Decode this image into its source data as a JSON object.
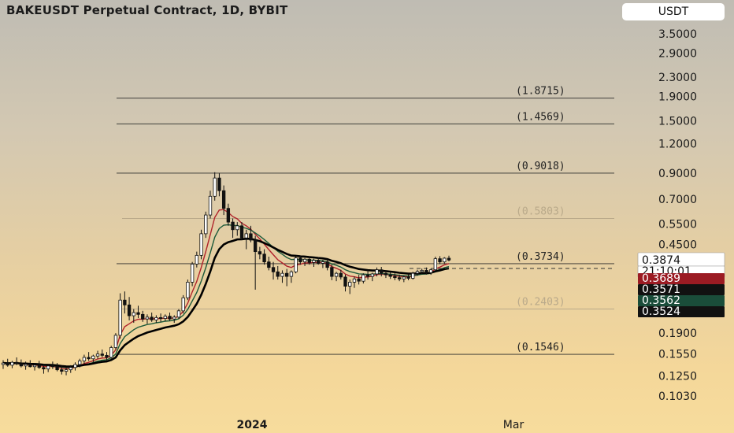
{
  "title": "BAKEUSDT Perpetual Contract, 1D, BYBIT",
  "currency_button": "USDT",
  "chart_data": {
    "type": "candlestick",
    "symbol": "BAKEUSDT Perpetual Contract",
    "interval": "1D",
    "exchange": "BYBIT",
    "y_scale": "log",
    "y_ticks": [
      "3.5000",
      "2.9000",
      "2.3000",
      "1.9000",
      "1.5000",
      "1.2000",
      "0.9000",
      "0.7000",
      "0.5500",
      "0.4500",
      "0.1900",
      "0.1550",
      "0.1250",
      "0.1030"
    ],
    "x_ticks": [
      "2024",
      "Mar"
    ],
    "fib_levels": [
      {
        "label": "(1.8715)",
        "value": 1.8715,
        "faded": false
      },
      {
        "label": "(1.4569)",
        "value": 1.4569,
        "faded": false
      },
      {
        "label": "(0.9018)",
        "value": 0.9018,
        "faded": false
      },
      {
        "label": "(0.5803)",
        "value": 0.5803,
        "faded": true
      },
      {
        "label": "(0.3734)",
        "value": 0.3734,
        "faded": false
      },
      {
        "label": "(0.2403)",
        "value": 0.2403,
        "faded": true
      },
      {
        "label": "(0.1546)",
        "value": 0.1546,
        "faded": false
      }
    ],
    "price_labels": [
      {
        "text": "0.3874",
        "style": "current"
      },
      {
        "text": "21:10:01",
        "style": "timer"
      },
      {
        "text": "0.3689",
        "style": "red",
        "color": "#9b1b23"
      },
      {
        "text": "0.3571",
        "style": "black",
        "color": "#111111"
      },
      {
        "text": "0.3562",
        "style": "green",
        "color": "#1a4d3a"
      },
      {
        "text": "0.3524",
        "style": "black",
        "color": "#111111"
      }
    ],
    "candles": [
      [
        0.14,
        0.146,
        0.134,
        0.142
      ],
      [
        0.142,
        0.148,
        0.137,
        0.139
      ],
      [
        0.139,
        0.145,
        0.135,
        0.143
      ],
      [
        0.143,
        0.15,
        0.139,
        0.141
      ],
      [
        0.141,
        0.147,
        0.136,
        0.138
      ],
      [
        0.138,
        0.144,
        0.133,
        0.14
      ],
      [
        0.14,
        0.146,
        0.136,
        0.137
      ],
      [
        0.137,
        0.142,
        0.132,
        0.139
      ],
      [
        0.139,
        0.145,
        0.134,
        0.136
      ],
      [
        0.136,
        0.141,
        0.128,
        0.134
      ],
      [
        0.134,
        0.14,
        0.13,
        0.138
      ],
      [
        0.138,
        0.144,
        0.134,
        0.137
      ],
      [
        0.137,
        0.142,
        0.131,
        0.133
      ],
      [
        0.133,
        0.138,
        0.127,
        0.131
      ],
      [
        0.131,
        0.136,
        0.126,
        0.133
      ],
      [
        0.133,
        0.139,
        0.129,
        0.136
      ],
      [
        0.136,
        0.143,
        0.132,
        0.14
      ],
      [
        0.14,
        0.148,
        0.136,
        0.145
      ],
      [
        0.145,
        0.154,
        0.141,
        0.15
      ],
      [
        0.15,
        0.158,
        0.145,
        0.148
      ],
      [
        0.148,
        0.154,
        0.143,
        0.152
      ],
      [
        0.152,
        0.16,
        0.148,
        0.155
      ],
      [
        0.155,
        0.162,
        0.15,
        0.153
      ],
      [
        0.153,
        0.158,
        0.146,
        0.15
      ],
      [
        0.15,
        0.168,
        0.148,
        0.165
      ],
      [
        0.165,
        0.19,
        0.162,
        0.186
      ],
      [
        0.186,
        0.28,
        0.18,
        0.262
      ],
      [
        0.262,
        0.285,
        0.23,
        0.25
      ],
      [
        0.25,
        0.27,
        0.215,
        0.225
      ],
      [
        0.225,
        0.24,
        0.21,
        0.232
      ],
      [
        0.232,
        0.248,
        0.22,
        0.228
      ],
      [
        0.228,
        0.236,
        0.212,
        0.218
      ],
      [
        0.218,
        0.228,
        0.208,
        0.222
      ],
      [
        0.222,
        0.232,
        0.212,
        0.216
      ],
      [
        0.216,
        0.226,
        0.21,
        0.221
      ],
      [
        0.221,
        0.23,
        0.212,
        0.219
      ],
      [
        0.219,
        0.228,
        0.213,
        0.224
      ],
      [
        0.224,
        0.232,
        0.214,
        0.218
      ],
      [
        0.218,
        0.226,
        0.21,
        0.222
      ],
      [
        0.222,
        0.24,
        0.218,
        0.236
      ],
      [
        0.236,
        0.275,
        0.23,
        0.268
      ],
      [
        0.268,
        0.32,
        0.262,
        0.312
      ],
      [
        0.312,
        0.38,
        0.3,
        0.372
      ],
      [
        0.372,
        0.42,
        0.36,
        0.405
      ],
      [
        0.405,
        0.52,
        0.39,
        0.5
      ],
      [
        0.5,
        0.62,
        0.48,
        0.6
      ],
      [
        0.6,
        0.76,
        0.58,
        0.72
      ],
      [
        0.72,
        0.91,
        0.69,
        0.86
      ],
      [
        0.86,
        0.9,
        0.72,
        0.76
      ],
      [
        0.76,
        0.8,
        0.6,
        0.64
      ],
      [
        0.64,
        0.67,
        0.54,
        0.56
      ],
      [
        0.56,
        0.58,
        0.48,
        0.52
      ],
      [
        0.52,
        0.56,
        0.49,
        0.54
      ],
      [
        0.54,
        0.56,
        0.47,
        0.48
      ],
      [
        0.48,
        0.52,
        0.43,
        0.5
      ],
      [
        0.5,
        0.54,
        0.46,
        0.47
      ],
      [
        0.47,
        0.49,
        0.29,
        0.42
      ],
      [
        0.42,
        0.44,
        0.39,
        0.41
      ],
      [
        0.41,
        0.43,
        0.37,
        0.38
      ],
      [
        0.38,
        0.4,
        0.35,
        0.36
      ],
      [
        0.36,
        0.38,
        0.32,
        0.345
      ],
      [
        0.345,
        0.365,
        0.32,
        0.33
      ],
      [
        0.33,
        0.35,
        0.31,
        0.34
      ],
      [
        0.34,
        0.355,
        0.3,
        0.33
      ],
      [
        0.33,
        0.35,
        0.31,
        0.345
      ],
      [
        0.345,
        0.4,
        0.34,
        0.395
      ],
      [
        0.395,
        0.405,
        0.37,
        0.38
      ],
      [
        0.38,
        0.395,
        0.365,
        0.39
      ],
      [
        0.39,
        0.4,
        0.37,
        0.378
      ],
      [
        0.378,
        0.392,
        0.362,
        0.386
      ],
      [
        0.386,
        0.398,
        0.37,
        0.375
      ],
      [
        0.375,
        0.388,
        0.358,
        0.38
      ],
      [
        0.38,
        0.39,
        0.35,
        0.36
      ],
      [
        0.36,
        0.372,
        0.318,
        0.33
      ],
      [
        0.33,
        0.345,
        0.315,
        0.34
      ],
      [
        0.34,
        0.352,
        0.32,
        0.328
      ],
      [
        0.328,
        0.336,
        0.285,
        0.3
      ],
      [
        0.3,
        0.32,
        0.278,
        0.312
      ],
      [
        0.312,
        0.33,
        0.295,
        0.322
      ],
      [
        0.322,
        0.335,
        0.305,
        0.315
      ],
      [
        0.315,
        0.34,
        0.308,
        0.335
      ],
      [
        0.335,
        0.35,
        0.32,
        0.33
      ],
      [
        0.33,
        0.342,
        0.315,
        0.338
      ],
      [
        0.338,
        0.36,
        0.33,
        0.352
      ],
      [
        0.352,
        0.362,
        0.33,
        0.34
      ],
      [
        0.34,
        0.35,
        0.325,
        0.335
      ],
      [
        0.335,
        0.345,
        0.322,
        0.33
      ],
      [
        0.33,
        0.34,
        0.318,
        0.326
      ],
      [
        0.326,
        0.336,
        0.315,
        0.322
      ],
      [
        0.322,
        0.332,
        0.312,
        0.328
      ],
      [
        0.328,
        0.338,
        0.318,
        0.324
      ],
      [
        0.324,
        0.345,
        0.32,
        0.34
      ],
      [
        0.34,
        0.352,
        0.332,
        0.346
      ],
      [
        0.346,
        0.356,
        0.338,
        0.35
      ],
      [
        0.35,
        0.36,
        0.336,
        0.342
      ],
      [
        0.342,
        0.356,
        0.335,
        0.352
      ],
      [
        0.352,
        0.4,
        0.348,
        0.392
      ],
      [
        0.392,
        0.402,
        0.372,
        0.38
      ],
      [
        0.38,
        0.398,
        0.374,
        0.394
      ],
      [
        0.394,
        0.404,
        0.382,
        0.387
      ]
    ]
  }
}
